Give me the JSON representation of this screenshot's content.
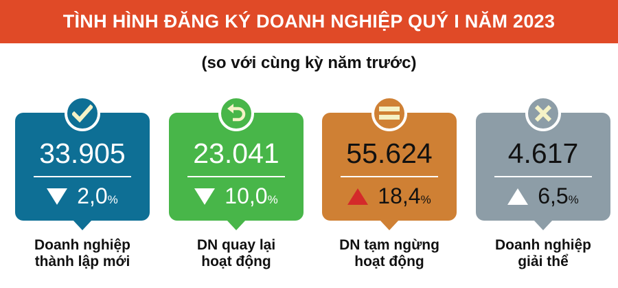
{
  "header": {
    "title": "TÌNH HÌNH ĐĂNG KÝ DOANH NGHIỆP QUÝ I NĂM 2023",
    "subtitle": "(so với cùng kỳ năm trước)",
    "color": "#e04a27"
  },
  "cards": [
    {
      "value": "33.905",
      "change": "2,0",
      "unit": "%",
      "direction": "down",
      "label_line1": "Doanh nghiệp",
      "label_line2": "thành lập mới",
      "icon": "check-icon",
      "color": "#0e6f95",
      "text_color": "#ffffff",
      "arrow_color": "#ffffff"
    },
    {
      "value": "23.041",
      "change": "10,0",
      "unit": "%",
      "direction": "down",
      "label_line1": "DN quay lại",
      "label_line2": "hoạt động",
      "icon": "return-arrow-icon",
      "color": "#48b649",
      "text_color": "#ffffff",
      "arrow_color": "#ffffff"
    },
    {
      "value": "55.624",
      "change": "18,4",
      "unit": "%",
      "direction": "up",
      "label_line1": "DN tạm ngừng",
      "label_line2": "hoạt động",
      "icon": "equals-icon",
      "color": "#cf8034",
      "text_color": "#111111",
      "arrow_color": "#d42a2a"
    },
    {
      "value": "4.617",
      "change": "6,5",
      "unit": "%",
      "direction": "up",
      "label_line1": "Doanh nghiệp",
      "label_line2": "giải thể",
      "icon": "x-icon",
      "color": "#8d9da7",
      "text_color": "#111111",
      "arrow_color": "#ffffff"
    }
  ]
}
